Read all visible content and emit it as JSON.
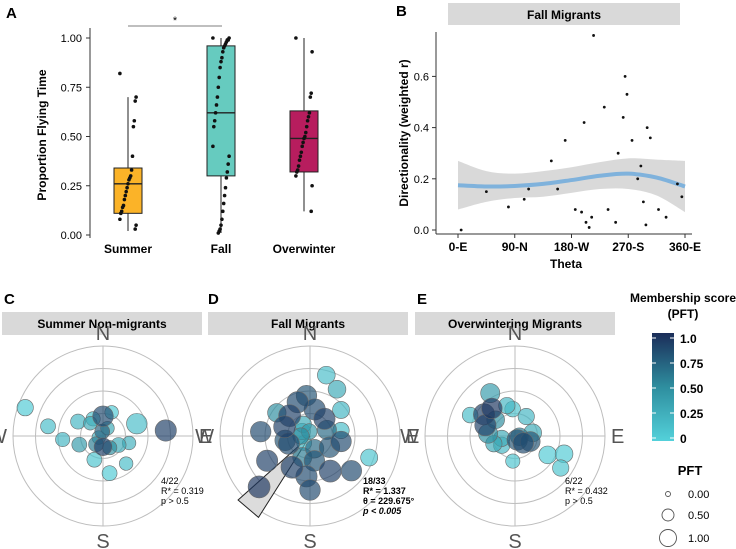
{
  "figure": {
    "panel_letters": [
      "A",
      "B",
      "C",
      "D",
      "E"
    ]
  },
  "chart_data": [
    {
      "id": "A",
      "type": "box",
      "ylabel": "Proportion Flying Time",
      "ylim": [
        0,
        1
      ],
      "yticks": [
        "0.00",
        "0.25",
        "0.50",
        "0.75",
        "1.00"
      ],
      "significance": "*",
      "colors": {
        "Summer": "#FBB328",
        "Fall": "#66CBBF",
        "Overwinter": "#B71D5E"
      },
      "groups": [
        {
          "name": "Summer",
          "min": 0.02,
          "q1": 0.11,
          "median": 0.26,
          "q3": 0.34,
          "max": 0.7,
          "points": [
            0.82,
            0.7,
            0.68,
            0.58,
            0.55,
            0.4,
            0.33,
            0.3,
            0.29,
            0.28,
            0.26,
            0.24,
            0.22,
            0.2,
            0.18,
            0.15,
            0.14,
            0.12,
            0.11,
            0.08,
            0.05,
            0.03
          ]
        },
        {
          "name": "Fall",
          "min": 0.01,
          "q1": 0.3,
          "median": 0.62,
          "q3": 0.96,
          "max": 1.0,
          "points": [
            1.0,
            1.0,
            0.99,
            0.99,
            0.98,
            0.97,
            0.96,
            0.95,
            0.93,
            0.9,
            0.88,
            0.85,
            0.8,
            0.75,
            0.7,
            0.66,
            0.62,
            0.58,
            0.55,
            0.45,
            0.4,
            0.36,
            0.32,
            0.29,
            0.24,
            0.2,
            0.16,
            0.12,
            0.08,
            0.05,
            0.03,
            0.02,
            0.01
          ]
        },
        {
          "name": "Overwinter",
          "min": 0.12,
          "q1": 0.32,
          "median": 0.49,
          "q3": 0.63,
          "max": 1.0,
          "points": [
            1.0,
            0.93,
            0.72,
            0.7,
            0.62,
            0.6,
            0.58,
            0.55,
            0.52,
            0.5,
            0.49,
            0.47,
            0.45,
            0.42,
            0.4,
            0.38,
            0.35,
            0.33,
            0.32,
            0.3,
            0.25,
            0.12
          ]
        }
      ]
    },
    {
      "id": "B",
      "type": "scatter",
      "title": "Fall Migrants",
      "xlabel": "Theta",
      "ylabel": "Directionality (weighted r)",
      "xlim": [
        0,
        360
      ],
      "ylim": [
        0,
        0.75
      ],
      "xticks": [
        {
          "value": 0,
          "label": "0-E"
        },
        {
          "value": 90,
          "label": "90-N"
        },
        {
          "value": 180,
          "label": "180-W"
        },
        {
          "value": 270,
          "label": "270-S"
        },
        {
          "value": 360,
          "label": "360-E"
        }
      ],
      "yticks": [
        "0.0",
        "0.2",
        "0.4",
        "0.6"
      ],
      "points": [
        {
          "x": 5,
          "y": 0.0
        },
        {
          "x": 45,
          "y": 0.15
        },
        {
          "x": 80,
          "y": 0.09
        },
        {
          "x": 105,
          "y": 0.12
        },
        {
          "x": 112,
          "y": 0.16
        },
        {
          "x": 148,
          "y": 0.27
        },
        {
          "x": 158,
          "y": 0.16
        },
        {
          "x": 170,
          "y": 0.35
        },
        {
          "x": 186,
          "y": 0.08
        },
        {
          "x": 196,
          "y": 0.07
        },
        {
          "x": 200,
          "y": 0.42
        },
        {
          "x": 203,
          "y": 0.03
        },
        {
          "x": 208,
          "y": 0.01
        },
        {
          "x": 212,
          "y": 0.05
        },
        {
          "x": 215,
          "y": 0.76
        },
        {
          "x": 232,
          "y": 0.48
        },
        {
          "x": 238,
          "y": 0.08
        },
        {
          "x": 250,
          "y": 0.03
        },
        {
          "x": 254,
          "y": 0.3
        },
        {
          "x": 262,
          "y": 0.44
        },
        {
          "x": 268,
          "y": 0.53
        },
        {
          "x": 276,
          "y": 0.35
        },
        {
          "x": 285,
          "y": 0.2
        },
        {
          "x": 290,
          "y": 0.25
        },
        {
          "x": 294,
          "y": 0.11
        },
        {
          "x": 300,
          "y": 0.4
        },
        {
          "x": 305,
          "y": 0.36
        },
        {
          "x": 318,
          "y": 0.08
        },
        {
          "x": 330,
          "y": 0.05
        },
        {
          "x": 348,
          "y": 0.18
        },
        {
          "x": 355,
          "y": 0.13
        },
        {
          "x": 298,
          "y": 0.02
        },
        {
          "x": 265,
          "y": 0.6
        }
      ],
      "smooth": [
        {
          "x": 0,
          "y": 0.175,
          "lo": 0.08,
          "hi": 0.27
        },
        {
          "x": 45,
          "y": 0.17,
          "lo": 0.11,
          "hi": 0.23
        },
        {
          "x": 90,
          "y": 0.172,
          "lo": 0.125,
          "hi": 0.22
        },
        {
          "x": 135,
          "y": 0.18,
          "lo": 0.13,
          "hi": 0.23
        },
        {
          "x": 180,
          "y": 0.195,
          "lo": 0.145,
          "hi": 0.245
        },
        {
          "x": 225,
          "y": 0.212,
          "lo": 0.16,
          "hi": 0.265
        },
        {
          "x": 270,
          "y": 0.22,
          "lo": 0.16,
          "hi": 0.28
        },
        {
          "x": 315,
          "y": 0.205,
          "lo": 0.135,
          "hi": 0.275
        },
        {
          "x": 360,
          "y": 0.17,
          "lo": 0.07,
          "hi": 0.27
        }
      ]
    },
    {
      "id": "C",
      "type": "polar-scatter",
      "title": "Summer Non-migrants",
      "compass": [
        "N",
        "S",
        "W",
        "E"
      ],
      "stats": [
        "4/22",
        "R* = 0.319",
        "p > 0.5"
      ],
      "points": [
        {
          "angle": 90,
          "r": 0.22,
          "pft": 0.85,
          "size": 0.9
        },
        {
          "angle": 20,
          "r": 0.4,
          "pft": 0.15,
          "size": 0.9
        },
        {
          "angle": 5,
          "r": 0.7,
          "pft": 0.9,
          "size": 0.95
        },
        {
          "angle": 200,
          "r": 0.28,
          "pft": 0.4,
          "size": 0.5
        },
        {
          "angle": 170,
          "r": 0.62,
          "pft": 0.15,
          "size": 0.5
        },
        {
          "angle": 160,
          "r": 0.92,
          "pft": 0.05,
          "size": 0.6
        },
        {
          "angle": 120,
          "r": 0.22,
          "pft": 0.1,
          "size": 0.45
        },
        {
          "angle": 150,
          "r": 0.32,
          "pft": 0.2,
          "size": 0.5
        },
        {
          "angle": 135,
          "r": 0.2,
          "pft": 0.3,
          "size": 0.4
        },
        {
          "angle": 70,
          "r": 0.28,
          "pft": 0.05,
          "size": 0.4
        },
        {
          "angle": 100,
          "r": 0.05,
          "pft": 0.75,
          "size": 0.5
        },
        {
          "angle": 270,
          "r": 0.12,
          "pft": 0.9,
          "size": 0.7
        },
        {
          "angle": 250,
          "r": 0.28,
          "pft": 0.1,
          "size": 0.5
        },
        {
          "angle": 280,
          "r": 0.42,
          "pft": 0.05,
          "size": 0.5
        },
        {
          "angle": 330,
          "r": 0.2,
          "pft": 0.3,
          "size": 0.5
        },
        {
          "angle": 310,
          "r": 0.4,
          "pft": 0.15,
          "size": 0.4
        },
        {
          "angle": 345,
          "r": 0.3,
          "pft": 0.25,
          "size": 0.4
        },
        {
          "angle": 230,
          "r": 0.12,
          "pft": 0.6,
          "size": 0.5
        },
        {
          "angle": 300,
          "r": 0.15,
          "pft": 0.5,
          "size": 0.45
        },
        {
          "angle": 200,
          "r": 0.05,
          "pft": 0.2,
          "size": 0.4
        },
        {
          "angle": 60,
          "r": 0.1,
          "pft": 0.3,
          "size": 0.4
        },
        {
          "angle": 185,
          "r": 0.45,
          "pft": 0.2,
          "size": 0.45
        }
      ]
    },
    {
      "id": "D",
      "type": "polar-scatter",
      "title": "Fall Migrants",
      "compass": [
        "N",
        "S",
        "W",
        "E"
      ],
      "stats": [
        "18/33",
        "R* = 1.337",
        "θ = 229.675°",
        "p < 0.005"
      ],
      "mean_direction": 229.675,
      "points": [
        {
          "angle": 225,
          "r": 0.8,
          "pft": 0.95,
          "size": 1.0
        },
        {
          "angle": 210,
          "r": 0.55,
          "pft": 0.9,
          "size": 0.95
        },
        {
          "angle": 240,
          "r": 0.4,
          "pft": 0.9,
          "size": 1.0
        },
        {
          "angle": 265,
          "r": 0.45,
          "pft": 0.85,
          "size": 0.95
        },
        {
          "angle": 280,
          "r": 0.28,
          "pft": 0.8,
          "size": 0.9
        },
        {
          "angle": 300,
          "r": 0.45,
          "pft": 0.9,
          "size": 1.0
        },
        {
          "angle": 320,
          "r": 0.6,
          "pft": 0.85,
          "size": 0.9
        },
        {
          "angle": 330,
          "r": 0.25,
          "pft": 0.8,
          "size": 0.9
        },
        {
          "angle": 350,
          "r": 0.35,
          "pft": 0.85,
          "size": 0.9
        },
        {
          "angle": 20,
          "r": 0.2,
          "pft": 0.7,
          "size": 0.8
        },
        {
          "angle": 50,
          "r": 0.25,
          "pft": 0.9,
          "size": 0.95
        },
        {
          "angle": 80,
          "r": 0.3,
          "pft": 0.85,
          "size": 0.95
        },
        {
          "angle": 95,
          "r": 0.45,
          "pft": 0.8,
          "size": 0.9
        },
        {
          "angle": 110,
          "r": 0.4,
          "pft": 0.85,
          "size": 0.95
        },
        {
          "angle": 135,
          "r": 0.32,
          "pft": 0.9,
          "size": 1.0
        },
        {
          "angle": 160,
          "r": 0.3,
          "pft": 0.9,
          "size": 1.0
        },
        {
          "angle": 175,
          "r": 0.55,
          "pft": 0.85,
          "size": 0.9
        },
        {
          "angle": 190,
          "r": 0.28,
          "pft": 0.8,
          "size": 0.9
        },
        {
          "angle": 200,
          "r": 0.25,
          "pft": 0.85,
          "size": 0.95
        },
        {
          "angle": 250,
          "r": 0.25,
          "pft": 0.6,
          "size": 0.8
        },
        {
          "angle": 290,
          "r": 0.15,
          "pft": 0.7,
          "size": 0.75
        },
        {
          "angle": 60,
          "r": 0.6,
          "pft": 0.3,
          "size": 0.7
        },
        {
          "angle": 75,
          "r": 0.7,
          "pft": 0.15,
          "size": 0.7
        },
        {
          "angle": 40,
          "r": 0.45,
          "pft": 0.2,
          "size": 0.65
        },
        {
          "angle": 10,
          "r": 0.35,
          "pft": 0.15,
          "size": 0.6
        },
        {
          "angle": 340,
          "r": 0.7,
          "pft": 0.1,
          "size": 0.65
        },
        {
          "angle": 150,
          "r": 0.1,
          "pft": 0.2,
          "size": 0.6
        },
        {
          "angle": 120,
          "r": 0.15,
          "pft": 0.3,
          "size": 0.6
        },
        {
          "angle": 230,
          "r": 0.1,
          "pft": 0.1,
          "size": 0.5
        },
        {
          "angle": 100,
          "r": 0.05,
          "pft": 0.4,
          "size": 0.55
        },
        {
          "angle": 145,
          "r": 0.45,
          "pft": 0.5,
          "size": 0.75
        },
        {
          "angle": 180,
          "r": 0.1,
          "pft": 0.5,
          "size": 0.6
        },
        {
          "angle": 270,
          "r": 0.6,
          "pft": 0.85,
          "size": 0.9
        }
      ]
    },
    {
      "id": "E",
      "type": "polar-scatter",
      "title": "Overwintering Migrants",
      "compass": [
        "N",
        "S",
        "W",
        "E"
      ],
      "stats": [
        "6/22",
        "R* = 0.432",
        "p > 0.5"
      ],
      "points": [
        {
          "angle": 120,
          "r": 0.55,
          "pft": 0.4,
          "size": 0.8
        },
        {
          "angle": 130,
          "r": 0.4,
          "pft": 0.95,
          "size": 0.9
        },
        {
          "angle": 145,
          "r": 0.42,
          "pft": 0.9,
          "size": 0.95
        },
        {
          "angle": 160,
          "r": 0.35,
          "pft": 0.9,
          "size": 0.95
        },
        {
          "angle": 175,
          "r": 0.3,
          "pft": 0.5,
          "size": 0.8
        },
        {
          "angle": 105,
          "r": 0.35,
          "pft": 0.2,
          "size": 0.6
        },
        {
          "angle": 95,
          "r": 0.3,
          "pft": 0.1,
          "size": 0.55
        },
        {
          "angle": 60,
          "r": 0.25,
          "pft": 0.2,
          "size": 0.6
        },
        {
          "angle": 190,
          "r": 0.15,
          "pft": 0.3,
          "size": 0.6
        },
        {
          "angle": 215,
          "r": 0.18,
          "pft": 0.2,
          "size": 0.6
        },
        {
          "angle": 300,
          "r": 0.05,
          "pft": 0.8,
          "size": 0.9
        },
        {
          "angle": 320,
          "r": 0.12,
          "pft": 0.85,
          "size": 0.9
        },
        {
          "angle": 340,
          "r": 0.18,
          "pft": 0.8,
          "size": 0.85
        },
        {
          "angle": 10,
          "r": 0.2,
          "pft": 0.3,
          "size": 0.7
        },
        {
          "angle": 330,
          "r": 0.42,
          "pft": 0.05,
          "size": 0.7
        },
        {
          "angle": 340,
          "r": 0.58,
          "pft": 0.05,
          "size": 0.7
        },
        {
          "angle": 325,
          "r": 0.62,
          "pft": 0.1,
          "size": 0.6
        },
        {
          "angle": 265,
          "r": 0.28,
          "pft": 0.1,
          "size": 0.45
        },
        {
          "angle": 200,
          "r": 0.25,
          "pft": 0.3,
          "size": 0.6
        },
        {
          "angle": 155,
          "r": 0.55,
          "pft": 0.15,
          "size": 0.55
        },
        {
          "angle": 140,
          "r": 0.28,
          "pft": 0.5,
          "size": 0.7
        },
        {
          "angle": 350,
          "r": 0.05,
          "pft": 0.6,
          "size": 0.7
        }
      ]
    }
  ],
  "legend": {
    "membership_title_1": "Membership score",
    "membership_title_2": "(PFT)",
    "membership_ticks": [
      "1.0",
      "0.75",
      "0.50",
      "0.25",
      "0"
    ],
    "gradient_top": "#1B2D59",
    "gradient_mid": "#2E8E9F",
    "gradient_bottom": "#53D1DA",
    "size_title": "PFT",
    "size_labels": [
      "0.00",
      "0.50",
      "1.00"
    ]
  }
}
